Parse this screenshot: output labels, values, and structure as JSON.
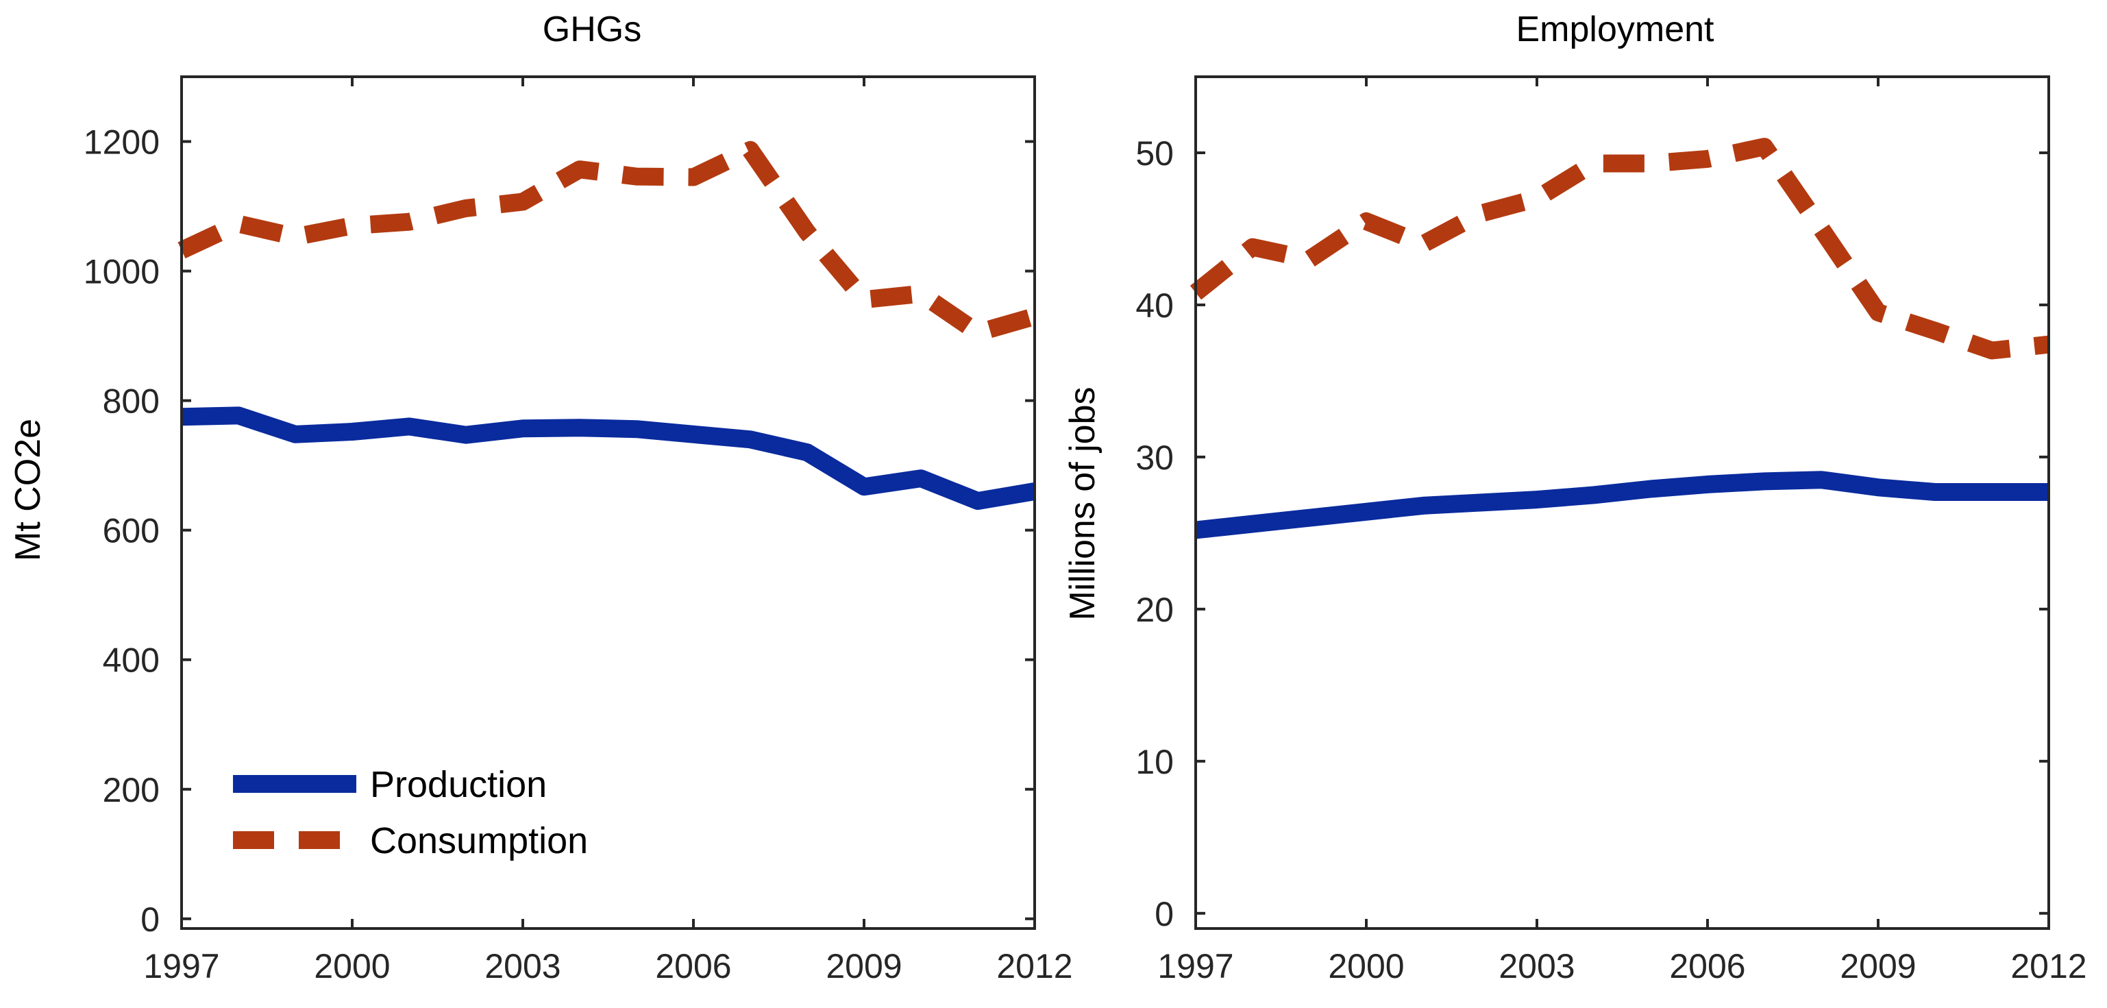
{
  "chart_data": [
    {
      "type": "line",
      "title": "GHGs",
      "xlabel": "",
      "ylabel": "Mt CO2e",
      "xlim": [
        1997,
        2012
      ],
      "ylim": [
        -15,
        1300
      ],
      "xticks": [
        1997,
        2000,
        2003,
        2006,
        2009,
        2012
      ],
      "yticks": [
        0,
        200,
        400,
        600,
        800,
        1000,
        1200
      ],
      "legend": {
        "placement": "bottom-left",
        "entries": [
          "Production",
          "Consumption"
        ]
      },
      "x": [
        1997,
        1998,
        1999,
        2000,
        2001,
        2002,
        2003,
        2004,
        2005,
        2006,
        2007,
        2008,
        2009,
        2010,
        2011,
        2012
      ],
      "series": [
        {
          "name": "Production",
          "color": "#0a2b9e",
          "style": "solid",
          "values": [
            775,
            777,
            748,
            752,
            760,
            747,
            757,
            758,
            756,
            748,
            740,
            720,
            667,
            680,
            645,
            660
          ]
        },
        {
          "name": "Consumption",
          "color": "#b33a10",
          "style": "dashed",
          "values": [
            1032,
            1073,
            1053,
            1070,
            1076,
            1097,
            1107,
            1157,
            1146,
            1145,
            1187,
            1060,
            956,
            965,
            905,
            930
          ]
        }
      ]
    },
    {
      "type": "line",
      "title": "Employment",
      "xlabel": "",
      "ylabel": "Millions of jobs",
      "xlim": [
        1997,
        2012
      ],
      "ylim": [
        -1,
        55
      ],
      "xticks": [
        1997,
        2000,
        2003,
        2006,
        2009,
        2012
      ],
      "yticks": [
        0,
        10,
        20,
        30,
        40,
        50
      ],
      "x": [
        1997,
        1998,
        1999,
        2000,
        2001,
        2002,
        2003,
        2004,
        2005,
        2006,
        2007,
        2008,
        2009,
        2010,
        2011,
        2012
      ],
      "series": [
        {
          "name": "Production",
          "color": "#0a2b9e",
          "style": "solid",
          "values": [
            25.2,
            25.6,
            26.0,
            26.4,
            26.8,
            27.0,
            27.2,
            27.5,
            27.9,
            28.2,
            28.4,
            28.5,
            28.0,
            27.7,
            27.7,
            27.7
          ]
        },
        {
          "name": "Consumption",
          "color": "#b33a10",
          "style": "dashed",
          "values": [
            40.8,
            43.8,
            43.0,
            45.5,
            44.0,
            46.0,
            47.0,
            49.3,
            49.3,
            49.6,
            50.4,
            45.0,
            39.5,
            38.3,
            37.0,
            37.4
          ]
        }
      ]
    }
  ]
}
